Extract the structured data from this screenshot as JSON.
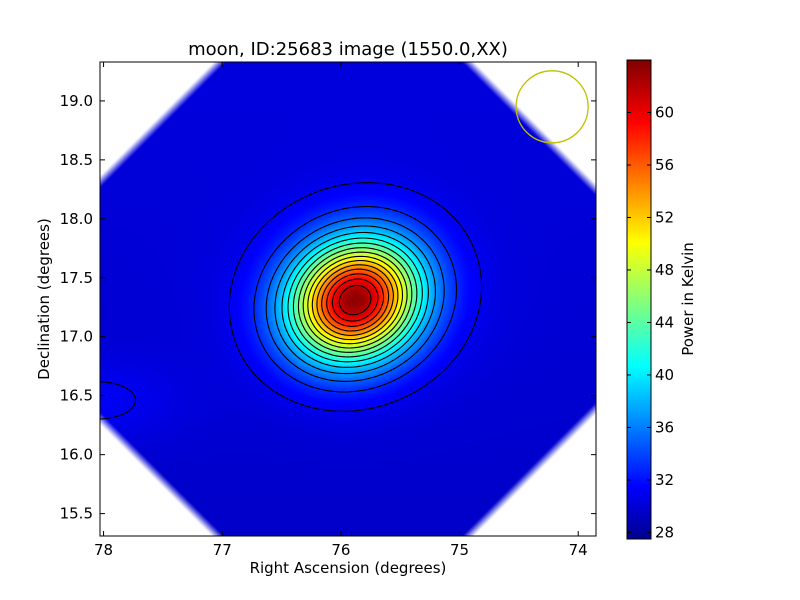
{
  "chart_data": {
    "type": "heatmap",
    "title": "moon, ID:25683 image (1550.0,XX)",
    "xlabel": "Right Ascension (degrees)",
    "ylabel": "Declination (degrees)",
    "xlim": [
      78.03,
      73.85
    ],
    "ylim": [
      15.31,
      19.33
    ],
    "x_ticks": [
      {
        "value": 78,
        "label": "78"
      },
      {
        "value": 77,
        "label": "77"
      },
      {
        "value": 76,
        "label": "76"
      },
      {
        "value": 75,
        "label": "75"
      },
      {
        "value": 74,
        "label": "74"
      }
    ],
    "y_ticks": [
      {
        "value": 15.5,
        "label": "15.5"
      },
      {
        "value": 16.0,
        "label": "16.0"
      },
      {
        "value": 16.5,
        "label": "16.5"
      },
      {
        "value": 17.0,
        "label": "17.0"
      },
      {
        "value": 17.5,
        "label": "17.5"
      },
      {
        "value": 18.0,
        "label": "18.0"
      },
      {
        "value": 18.5,
        "label": "18.5"
      },
      {
        "value": 19.0,
        "label": "19.0"
      }
    ],
    "colorbar": {
      "label": "Power in Kelvin",
      "range": [
        27.5,
        64
      ],
      "colormap": "jet",
      "ticks": [
        {
          "value": 28,
          "label": "28"
        },
        {
          "value": 32,
          "label": "32"
        },
        {
          "value": 36,
          "label": "36"
        },
        {
          "value": 40,
          "label": "40"
        },
        {
          "value": 44,
          "label": "44"
        },
        {
          "value": 48,
          "label": "48"
        },
        {
          "value": 52,
          "label": "52"
        },
        {
          "value": 56,
          "label": "56"
        },
        {
          "value": 60,
          "label": "60"
        }
      ]
    },
    "background_level": 30.5,
    "source": {
      "ra": 75.88,
      "dec": 17.31,
      "peak": 63.5
    },
    "contour_levels": [
      31.5,
      33.5,
      35.5,
      37.5,
      39.5,
      41.5,
      43.5,
      45.5,
      47.5,
      49.5,
      51.5,
      53.5,
      55.5,
      57.5,
      59.5,
      61.5
    ],
    "beam": {
      "ra": 74.22,
      "dec": 18.95,
      "color": "#bfbf00"
    },
    "grid": false
  }
}
